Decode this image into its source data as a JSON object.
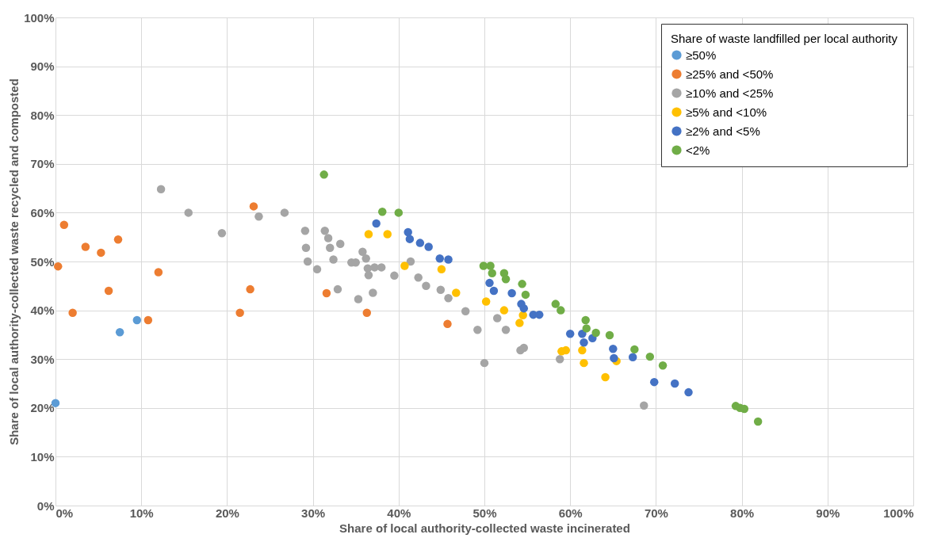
{
  "chart_data": {
    "type": "scatter",
    "xlabel": "Share of local authority-collected waste incinerated",
    "ylabel": "Share of local authority-collected waste recycled and composted",
    "legend_title": "Share of waste landfilled per local authority",
    "legend": "top right",
    "grid": true,
    "marker": "circle",
    "xlim": [
      0,
      100
    ],
    "ylim": [
      0,
      100
    ],
    "xticks": [
      {
        "value": 0,
        "label": "0%"
      },
      {
        "value": 10,
        "label": "10%"
      },
      {
        "value": 20,
        "label": "20%"
      },
      {
        "value": 30,
        "label": "30%"
      },
      {
        "value": 40,
        "label": "40%"
      },
      {
        "value": 50,
        "label": "50%"
      },
      {
        "value": 60,
        "label": "60%"
      },
      {
        "value": 70,
        "label": "70%"
      },
      {
        "value": 80,
        "label": "80%"
      },
      {
        "value": 90,
        "label": "90%"
      },
      {
        "value": 100,
        "label": "100%"
      }
    ],
    "yticks": [
      {
        "value": 0,
        "label": "0%"
      },
      {
        "value": 10,
        "label": "10%"
      },
      {
        "value": 20,
        "label": "20%"
      },
      {
        "value": 30,
        "label": "30%"
      },
      {
        "value": 40,
        "label": "40%"
      },
      {
        "value": 50,
        "label": "50%"
      },
      {
        "value": 60,
        "label": "60%"
      },
      {
        "value": 70,
        "label": "70%"
      },
      {
        "value": 80,
        "label": "80%"
      },
      {
        "value": 90,
        "label": "90%"
      },
      {
        "value": 100,
        "label": "100%"
      }
    ],
    "series": [
      {
        "name": "≥50%",
        "color": "#5b9bd5",
        "x": [
          0,
          7.5,
          9.5
        ],
        "values": [
          21,
          35.5,
          38
        ]
      },
      {
        "name": "≥25% and <50%",
        "color": "#ed7d31",
        "x": [
          0.3,
          1,
          2,
          3.5,
          5.3,
          6.2,
          7.3,
          10.8,
          12,
          21.5,
          22.7,
          23.1,
          31.6,
          36.3,
          45.7
        ],
        "values": [
          49,
          57.5,
          39.5,
          53,
          51.8,
          44,
          54.5,
          38,
          47.8,
          39.5,
          44.3,
          61.3,
          43.5,
          39.5,
          37.2
        ]
      },
      {
        "name": "≥10% and <25%",
        "color": "#a5a5a5",
        "x": [
          12.3,
          15.5,
          19.4,
          23.7,
          26.7,
          29.1,
          29.2,
          29.4,
          30.5,
          31.4,
          31.8,
          32,
          32.4,
          32.9,
          33.2,
          34.5,
          35,
          35.3,
          35.8,
          36.2,
          36.4,
          36.5,
          37,
          37.2,
          38,
          39.5,
          41.4,
          42.3,
          43.2,
          44.9,
          45.8,
          47.8,
          49.2,
          50,
          51.5,
          52.5,
          54.2,
          54.6,
          58.8,
          68.6
        ],
        "values": [
          64.8,
          60,
          55.8,
          59.2,
          60,
          56.3,
          52.8,
          50,
          48.4,
          56.3,
          54.8,
          52.8,
          50.4,
          44.3,
          53.6,
          49.8,
          49.8,
          42.3,
          52,
          50.6,
          48.6,
          47.2,
          43.6,
          48.8,
          48.8,
          47.1,
          50,
          46.7,
          45,
          44.2,
          42.5,
          39.8,
          36,
          29.2,
          38.4,
          36,
          31.8,
          32.3,
          30,
          20.5
        ]
      },
      {
        "name": "≥5% and <10%",
        "color": "#ffc000",
        "x": [
          36.5,
          38.7,
          40.7,
          45,
          46.7,
          50.2,
          52.3,
          54.1,
          54.5,
          59,
          59.5,
          61.4,
          61.6,
          64.1,
          65.4
        ],
        "values": [
          55.6,
          55.6,
          49.1,
          48.4,
          43.6,
          41.8,
          40,
          37.4,
          39,
          31.6,
          31.8,
          31.8,
          29.2,
          26.3,
          29.6
        ]
      },
      {
        "name": "≥2% and <5%",
        "color": "#4472c4",
        "x": [
          37.4,
          41.1,
          41.3,
          42.5,
          43.5,
          44.8,
          45.8,
          50.6,
          51.1,
          53.2,
          54.3,
          54.6,
          55.7,
          56.4,
          60,
          61.4,
          61.6,
          62.6,
          65,
          65.1,
          67.3,
          69.8,
          72.2,
          73.8
        ],
        "values": [
          57.8,
          56,
          54.6,
          53.8,
          53,
          50.6,
          50.4,
          45.6,
          44,
          43.5,
          41.3,
          40.4,
          39.1,
          39.1,
          35.2,
          35.2,
          33.4,
          34.3,
          32.1,
          30.2,
          30.4,
          25.3,
          25,
          23.2
        ]
      },
      {
        "name": "<2%",
        "color": "#70ad47",
        "x": [
          31.3,
          38.1,
          40,
          49.9,
          50.7,
          50.9,
          52.3,
          52.5,
          54.4,
          54.8,
          58.3,
          58.9,
          61.8,
          61.9,
          63,
          64.6,
          67.5,
          69.3,
          70.8,
          79.3,
          79.8,
          80.3,
          81.9
        ],
        "values": [
          67.8,
          60.2,
          60,
          49.1,
          49.1,
          47.6,
          47.6,
          46.4,
          45.4,
          43.2,
          41.3,
          40,
          38,
          36.3,
          35.4,
          34.9,
          32,
          30.5,
          28.7,
          20.4,
          20,
          19.8,
          17.2
        ]
      }
    ]
  }
}
